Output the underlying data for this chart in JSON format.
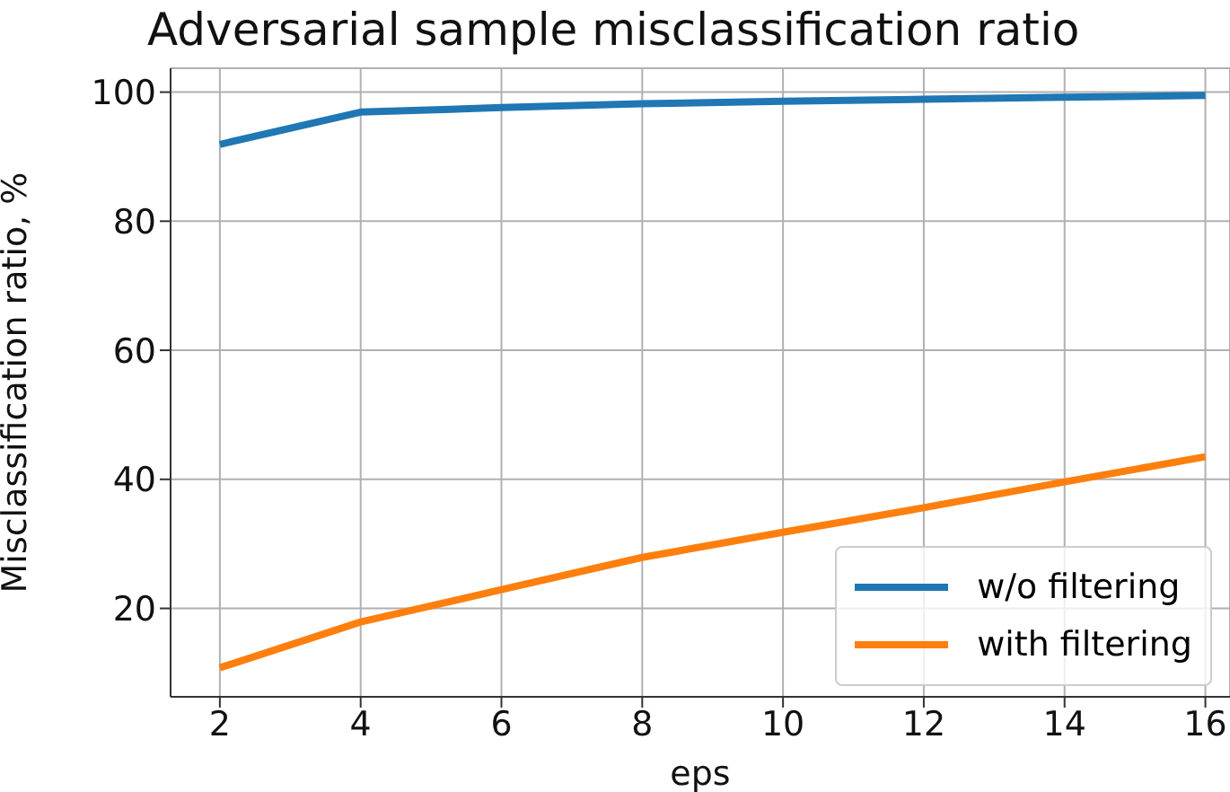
{
  "chart_data": {
    "type": "line",
    "title": "Adversarial sample misclassification ratio",
    "xlabel": "eps",
    "ylabel": "Misclassification ratio, %",
    "x": [
      2,
      4,
      6,
      8,
      10,
      12,
      14,
      16
    ],
    "series": [
      {
        "name": "w/o filtering",
        "color": "#1f77b4",
        "values": [
          91.9,
          96.9,
          97.6,
          98.2,
          98.6,
          98.9,
          99.2,
          99.5
        ]
      },
      {
        "name": "with filtering",
        "color": "#ff7f0e",
        "values": [
          10.8,
          17.9,
          22.9,
          27.9,
          31.8,
          35.6,
          39.6,
          43.5
        ]
      }
    ],
    "xlim": [
      1.3,
      16.35
    ],
    "ylim": [
      6.3,
      103.7
    ],
    "xticks": [
      2,
      4,
      6,
      8,
      10,
      12,
      14,
      16
    ],
    "yticks": [
      20,
      40,
      60,
      80,
      100
    ],
    "grid": true,
    "legend": "bottom right",
    "marker": "none",
    "line_style": "solid"
  }
}
